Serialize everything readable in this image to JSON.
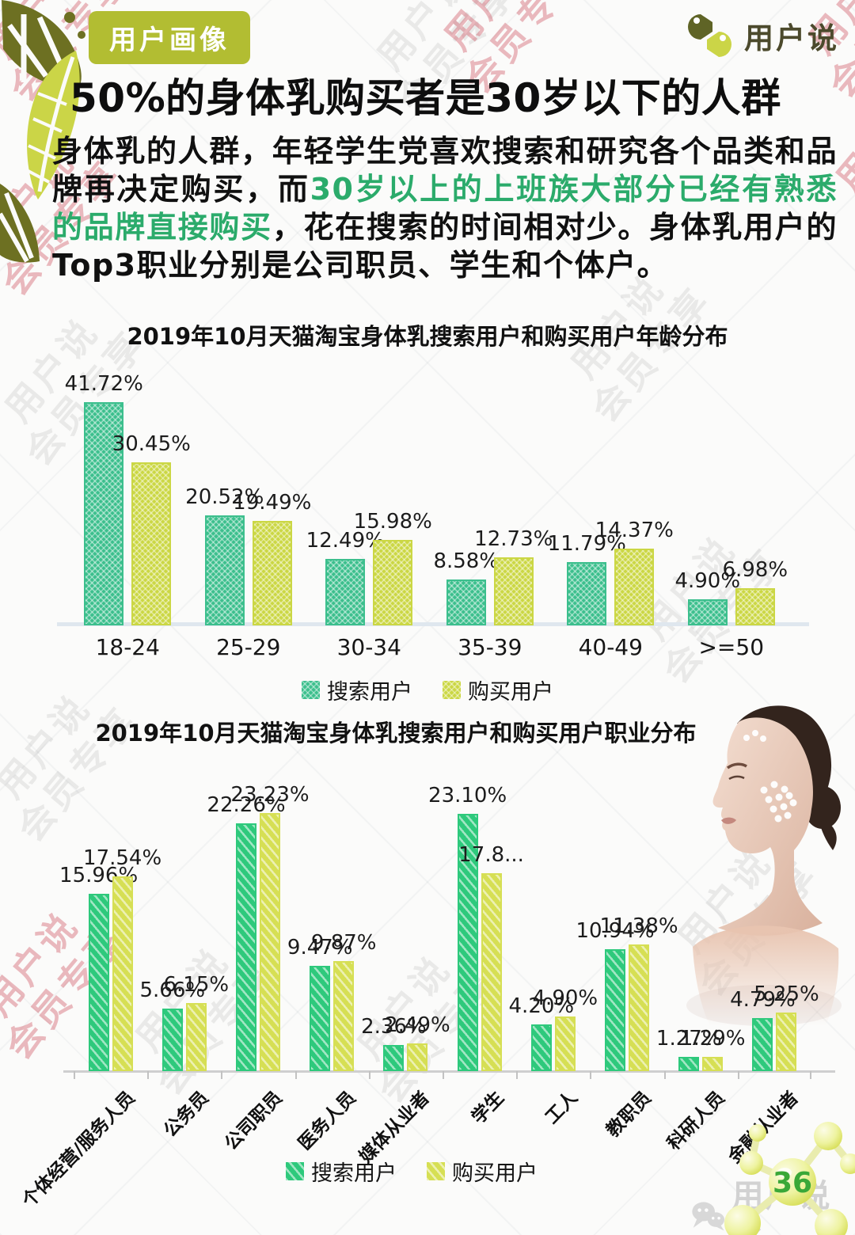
{
  "page": {
    "number": "36"
  },
  "badge": {
    "label": "用户画像",
    "bg": "#b2bd32"
  },
  "logo": {
    "text": "用户说"
  },
  "icons": {
    "header_corner": "monstera-leaves",
    "logo": "dual-birds-logo",
    "chart2_photo": "woman-profile-photo",
    "page_corner": "molecule-spheres",
    "footer_chat": "chat-bubbles"
  },
  "headline": "50%的身体乳购买者是30岁以下的人群",
  "paragraph": {
    "part1": "身体乳的人群，年轻学生党喜欢搜索和研究各个品类和品牌再决定购买，而",
    "highlight": "30岁以上的上班族大部分已经有熟悉的品牌直接购买",
    "part2": "，花在搜索的时间相对少。身体乳用户的Top3职业分别是公司职员、学生和个体户。",
    "highlight_color": "#2bab6b"
  },
  "watermark": {
    "line1": "用户说",
    "line2": "会员专享",
    "footer": "用户说了"
  },
  "chart_data": [
    {
      "type": "bar",
      "title": "2019年10月天猫淘宝身体乳搜索用户和购买用户年龄分布",
      "categories": [
        "18-24",
        "25-29",
        "30-34",
        "35-39",
        "40-49",
        ">=50"
      ],
      "series": [
        {
          "name": "搜索用户",
          "color": "#3cbf8d",
          "pattern": "cross",
          "values": [
            41.72,
            20.52,
            12.49,
            8.58,
            11.79,
            4.9
          ],
          "labels": [
            "41.72%",
            "20.52%",
            "12.49%",
            "8.58%",
            "11.79%",
            "4.90%"
          ]
        },
        {
          "name": "购买用户",
          "color": "#cbd744",
          "pattern": "cross",
          "values": [
            30.45,
            19.49,
            15.98,
            12.73,
            14.37,
            6.98
          ],
          "labels": [
            "30.45%",
            "19.49%",
            "15.98%",
            "12.73%",
            "14.37%",
            "6.98%"
          ]
        }
      ],
      "xlabel": "",
      "ylabel": "",
      "ylim": [
        0,
        45
      ],
      "grid": false,
      "legend_position": "bottom"
    },
    {
      "type": "bar",
      "title": "2019年10月天猫淘宝身体乳搜索用户和购买用户职业分布",
      "categories": [
        "个体经营/服务人员",
        "公务员",
        "公司职员",
        "医务人员",
        "媒体从业者",
        "学生",
        "工人",
        "教职员",
        "科研人员",
        "金融从业者"
      ],
      "series": [
        {
          "name": "搜索用户",
          "color": "#2ec97c",
          "pattern": "stripe",
          "values": [
            15.96,
            5.66,
            22.26,
            9.47,
            2.36,
            23.1,
            4.2,
            10.94,
            1.27,
            4.79
          ],
          "labels": [
            "15.96%",
            "5.66%",
            "22.26%",
            "9.47%",
            "2.36%",
            "23.10%",
            "4.20%",
            "10.94%",
            "1.27%",
            "4.79%"
          ]
        },
        {
          "name": "购买用户",
          "color": "#d6df54",
          "pattern": "stripe",
          "values": [
            17.54,
            6.15,
            23.23,
            9.87,
            2.49,
            17.8,
            4.9,
            11.38,
            1.29,
            5.25
          ],
          "labels": [
            "17.54%",
            "6.15%",
            "23.23%",
            "9.87%",
            "2.49%",
            "17.8...",
            "4.90%",
            "11.38%",
            "1.29%",
            "5.25%"
          ]
        }
      ],
      "xlabel": "",
      "ylabel": "",
      "ylim": [
        0,
        25
      ],
      "grid": false,
      "legend_position": "bottom"
    }
  ]
}
